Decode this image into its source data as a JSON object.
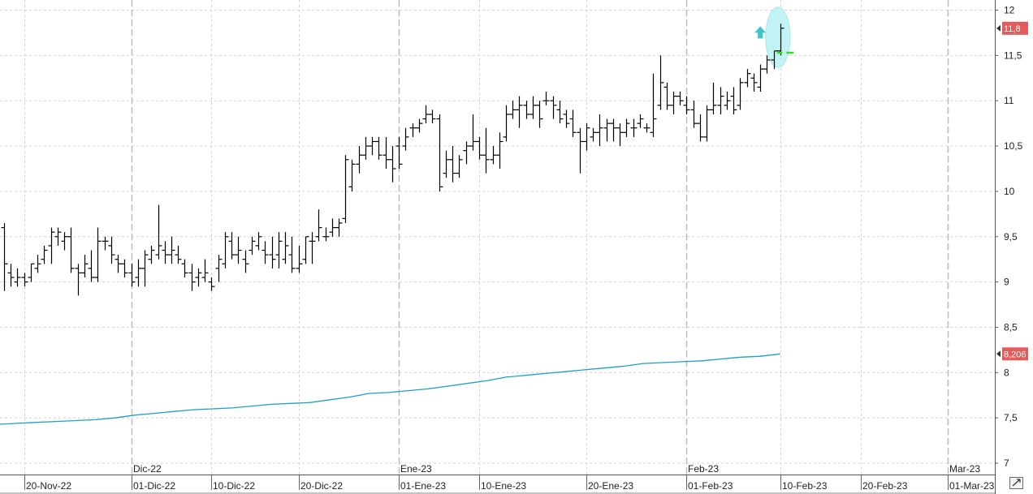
{
  "chart_data": {
    "type": "ohlc",
    "title": "",
    "xlabel": "",
    "ylabel": "",
    "ylim": [
      6.95,
      12.1
    ],
    "y_ticks": [
      "12",
      "11,5",
      "11",
      "10,5",
      "10",
      "9,5",
      "9",
      "8,5",
      "8",
      "7,5",
      "7"
    ],
    "y_tick_values": [
      12,
      11.5,
      11,
      10.5,
      10,
      9.5,
      9,
      8.5,
      8,
      7.5,
      7
    ],
    "month_labels": [
      {
        "label": "Dic-22",
        "bar": 19
      },
      {
        "label": "Ene-23",
        "bar": 59
      },
      {
        "label": "Feb-23",
        "bar": 102
      },
      {
        "label": "Mar-23",
        "bar": 141
      }
    ],
    "date_labels": [
      {
        "label": "20-Nov-22",
        "bar": 3
      },
      {
        "label": "01-Dic-22",
        "bar": 19
      },
      {
        "label": "10-Dic-22",
        "bar": 31
      },
      {
        "label": "20-Dic-22",
        "bar": 44
      },
      {
        "label": "01-Ene-23",
        "bar": 59
      },
      {
        "label": "10-Ene-23",
        "bar": 71
      },
      {
        "label": "20-Ene-23",
        "bar": 87
      },
      {
        "label": "01-Feb-23",
        "bar": 102
      },
      {
        "label": "10-Feb-23",
        "bar": 116
      },
      {
        "label": "20-Feb-23",
        "bar": 128
      },
      {
        "label": "01-Mar-23",
        "bar": 141
      }
    ],
    "ohlc": [
      [
        9.6,
        9.65,
        8.9,
        9.2
      ],
      [
        9.1,
        9.2,
        8.95,
        9.05
      ],
      [
        9.0,
        9.15,
        8.95,
        9.05
      ],
      [
        9.05,
        9.1,
        8.95,
        9.0
      ],
      [
        9.05,
        9.2,
        9.0,
        9.2
      ],
      [
        9.15,
        9.3,
        9.1,
        9.2
      ],
      [
        9.25,
        9.4,
        9.2,
        9.35
      ],
      [
        9.4,
        9.6,
        9.2,
        9.55
      ],
      [
        9.5,
        9.6,
        9.4,
        9.55
      ],
      [
        9.45,
        9.55,
        9.35,
        9.5
      ],
      [
        9.5,
        9.6,
        9.1,
        9.15
      ],
      [
        9.15,
        9.2,
        8.85,
        9.1
      ],
      [
        9.1,
        9.3,
        9.05,
        9.2
      ],
      [
        9.15,
        9.35,
        9.0,
        9.05
      ],
      [
        9.05,
        9.6,
        9.0,
        9.45
      ],
      [
        9.45,
        9.5,
        9.35,
        9.45
      ],
      [
        9.4,
        9.5,
        9.2,
        9.3
      ],
      [
        9.25,
        9.3,
        9.1,
        9.2
      ],
      [
        9.2,
        9.25,
        9.05,
        9.1
      ],
      [
        9.1,
        9.2,
        8.95,
        9.0
      ],
      [
        9.05,
        9.25,
        8.95,
        9.15
      ],
      [
        9.15,
        9.35,
        8.95,
        9.3
      ],
      [
        9.25,
        9.4,
        9.2,
        9.35
      ],
      [
        9.3,
        9.85,
        9.25,
        9.4
      ],
      [
        9.35,
        9.45,
        9.2,
        9.3
      ],
      [
        9.3,
        9.5,
        9.2,
        9.35
      ],
      [
        9.3,
        9.4,
        9.2,
        9.25
      ],
      [
        9.2,
        9.25,
        9.05,
        9.1
      ],
      [
        9.1,
        9.2,
        8.9,
        9.0
      ],
      [
        9.05,
        9.15,
        8.95,
        9.1
      ],
      [
        9.05,
        9.25,
        9.0,
        9.1
      ],
      [
        9.0,
        9.05,
        8.9,
        8.95
      ],
      [
        9.15,
        9.3,
        9.0,
        9.25
      ],
      [
        9.2,
        9.55,
        9.15,
        9.5
      ],
      [
        9.45,
        9.55,
        9.25,
        9.3
      ],
      [
        9.3,
        9.5,
        9.2,
        9.35
      ],
      [
        9.25,
        9.35,
        9.1,
        9.2
      ],
      [
        9.35,
        9.5,
        9.3,
        9.45
      ],
      [
        9.4,
        9.55,
        9.35,
        9.5
      ],
      [
        9.35,
        9.45,
        9.2,
        9.3
      ],
      [
        9.3,
        9.5,
        9.15,
        9.25
      ],
      [
        9.3,
        9.55,
        9.15,
        9.45
      ],
      [
        9.25,
        9.55,
        9.2,
        9.4
      ],
      [
        9.3,
        9.5,
        9.1,
        9.15
      ],
      [
        9.15,
        9.4,
        9.1,
        9.2
      ],
      [
        9.25,
        9.5,
        9.2,
        9.5
      ],
      [
        9.45,
        9.55,
        9.2,
        9.45
      ],
      [
        9.5,
        9.8,
        9.45,
        9.6
      ],
      [
        9.5,
        9.6,
        9.45,
        9.5
      ],
      [
        9.55,
        9.7,
        9.5,
        9.6
      ],
      [
        9.6,
        9.7,
        9.5,
        9.65
      ],
      [
        9.7,
        10.4,
        9.65,
        10.35
      ],
      [
        10.05,
        10.35,
        10.0,
        10.3
      ],
      [
        10.3,
        10.5,
        10.2,
        10.4
      ],
      [
        10.4,
        10.6,
        10.35,
        10.5
      ],
      [
        10.5,
        10.6,
        10.4,
        10.55
      ],
      [
        10.55,
        10.6,
        10.35,
        10.4
      ],
      [
        10.4,
        10.6,
        10.25,
        10.35
      ],
      [
        10.35,
        10.5,
        10.1,
        10.25
      ],
      [
        10.5,
        10.6,
        10.25,
        10.3
      ],
      [
        10.5,
        10.7,
        10.45,
        10.6
      ],
      [
        10.7,
        10.75,
        10.6,
        10.7
      ],
      [
        10.7,
        10.8,
        10.65,
        10.75
      ],
      [
        10.8,
        10.95,
        10.75,
        10.85
      ],
      [
        10.85,
        10.9,
        10.75,
        10.8
      ],
      [
        10.8,
        10.85,
        10.0,
        10.05
      ],
      [
        10.2,
        10.45,
        10.15,
        10.35
      ],
      [
        10.35,
        10.5,
        10.1,
        10.2
      ],
      [
        10.2,
        10.4,
        10.15,
        10.35
      ],
      [
        10.45,
        10.55,
        10.3,
        10.5
      ],
      [
        10.5,
        10.85,
        10.45,
        10.55
      ],
      [
        10.55,
        10.6,
        10.35,
        10.4
      ],
      [
        10.4,
        10.7,
        10.2,
        10.35
      ],
      [
        10.35,
        10.5,
        10.3,
        10.4
      ],
      [
        10.4,
        10.65,
        10.25,
        10.55
      ],
      [
        10.6,
        10.95,
        10.55,
        10.85
      ],
      [
        10.85,
        11.0,
        10.8,
        10.9
      ],
      [
        10.9,
        11.05,
        10.7,
        10.95
      ],
      [
        10.95,
        11.0,
        10.8,
        10.85
      ],
      [
        10.85,
        11.05,
        10.8,
        10.95
      ],
      [
        10.95,
        11.0,
        10.7,
        10.8
      ],
      [
        11.0,
        11.1,
        10.95,
        11.0
      ],
      [
        11.0,
        11.05,
        10.8,
        10.95
      ],
      [
        10.9,
        11.0,
        10.75,
        10.8
      ],
      [
        10.85,
        10.9,
        10.7,
        10.75
      ],
      [
        10.8,
        10.9,
        10.6,
        10.65
      ],
      [
        10.65,
        10.7,
        10.2,
        10.55
      ],
      [
        10.55,
        10.75,
        10.45,
        10.7
      ],
      [
        10.6,
        10.7,
        10.55,
        10.65
      ],
      [
        10.65,
        10.85,
        10.5,
        10.7
      ],
      [
        10.7,
        10.8,
        10.55,
        10.75
      ],
      [
        10.75,
        10.8,
        10.55,
        10.7
      ],
      [
        10.7,
        10.75,
        10.5,
        10.65
      ],
      [
        10.65,
        10.8,
        10.6,
        10.75
      ],
      [
        10.7,
        10.8,
        10.6,
        10.7
      ],
      [
        10.75,
        10.85,
        10.7,
        10.8
      ],
      [
        10.7,
        10.75,
        10.65,
        10.7
      ],
      [
        10.65,
        11.3,
        10.6,
        10.8
      ],
      [
        10.95,
        11.5,
        10.9,
        11.2
      ],
      [
        11.15,
        11.2,
        10.9,
        10.95
      ],
      [
        10.95,
        11.1,
        10.85,
        11.05
      ],
      [
        11.05,
        11.1,
        10.95,
        11.0
      ],
      [
        10.95,
        11.05,
        10.85,
        10.9
      ],
      [
        10.9,
        11.0,
        10.7,
        10.75
      ],
      [
        10.75,
        10.85,
        10.55,
        10.6
      ],
      [
        10.6,
        10.95,
        10.55,
        10.9
      ],
      [
        10.9,
        11.2,
        10.85,
        10.95
      ],
      [
        10.95,
        11.15,
        10.85,
        11.05
      ],
      [
        10.95,
        11.1,
        10.9,
        11.0
      ],
      [
        11.05,
        11.15,
        10.85,
        10.9
      ],
      [
        10.95,
        11.25,
        10.9,
        11.2
      ],
      [
        11.2,
        11.35,
        11.15,
        11.3
      ],
      [
        11.25,
        11.3,
        11.1,
        11.2
      ],
      [
        11.15,
        11.4,
        11.1,
        11.35
      ],
      [
        11.35,
        11.5,
        11.3,
        11.45
      ],
      [
        11.45,
        11.55,
        11.35,
        11.55
      ],
      [
        11.55,
        11.85,
        11.5,
        11.8
      ]
    ],
    "series": [
      {
        "values": [
          7.43,
          7.44,
          7.45,
          7.46,
          7.47,
          7.48,
          7.5,
          7.53,
          7.55,
          7.57,
          7.59,
          7.6,
          7.61,
          7.63,
          7.65,
          7.66,
          7.67,
          7.7,
          7.73,
          7.77,
          7.78,
          7.8,
          7.82,
          7.85,
          7.88,
          7.91,
          7.95,
          7.97,
          7.99,
          8.01,
          8.03,
          8.05,
          8.07,
          8.1,
          8.11,
          8.12,
          8.13,
          8.15,
          8.17,
          8.18,
          8.206
        ],
        "color": "#1e9fc8"
      }
    ],
    "resistance_level": 11.53,
    "last_price_badge": "11,8",
    "ma_badge": "8,206"
  },
  "colors": {
    "bar": "#000000",
    "grid": "#d4d4d4",
    "resistance": "#33e01a",
    "highlight": "#bdf3f5",
    "arrow": "#3cc8c8",
    "badge": "#e25c5c",
    "ma": "#1e9fc8"
  },
  "icons": {
    "corner": "chart-scale-icon"
  }
}
